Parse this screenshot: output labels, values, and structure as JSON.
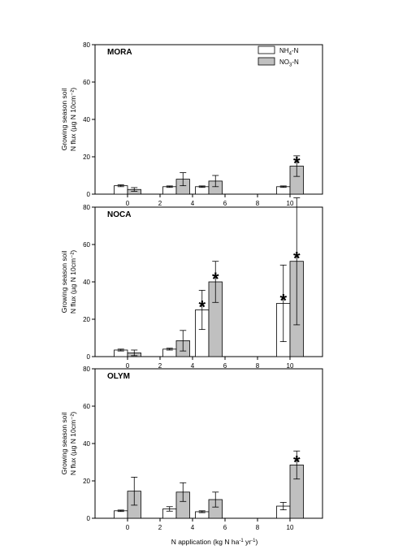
{
  "chart_data": {
    "type": "bar",
    "xlabel": "N application (kg N ha⁻¹ yr⁻¹)",
    "ylabel_line1": "Growing season soil",
    "ylabel_line2": "N flux (µg N 10cm⁻²)",
    "xlim": [
      -2,
      12
    ],
    "ylim": [
      0,
      80
    ],
    "x_ticks": [
      0,
      2,
      4,
      6,
      8,
      10
    ],
    "y_ticks": [
      0,
      20,
      40,
      60,
      80
    ],
    "legend": {
      "placement": "top-right",
      "entries": [
        {
          "label": "NH4-N",
          "main": "NH",
          "sub": "4",
          "rest": "-N",
          "color": "#ffffff"
        },
        {
          "label": "NO3-N",
          "main": "NO",
          "sub": "3",
          "rest": "-N",
          "color": "#c0c0c0"
        }
      ]
    },
    "significance_marker": "*",
    "panels": [
      {
        "name": "MORA",
        "x": [
          0,
          3,
          5,
          10
        ],
        "series": [
          {
            "name": "NH4-N",
            "color": "#ffffff",
            "values": [
              4.5,
              4.0,
              4.0,
              4.0
            ],
            "errors": [
              0.5,
              0.4,
              0.4,
              0.4
            ],
            "significant": [
              false,
              false,
              false,
              false
            ]
          },
          {
            "name": "NO3-N",
            "color": "#c0c0c0",
            "values": [
              2.5,
              8.0,
              7.0,
              15.0
            ],
            "errors": [
              1.0,
              3.5,
              3.0,
              5.5
            ],
            "significant": [
              false,
              false,
              false,
              true
            ]
          }
        ]
      },
      {
        "name": "NOCA",
        "x": [
          0,
          3,
          5,
          10
        ],
        "series": [
          {
            "name": "NH4-N",
            "color": "#ffffff",
            "values": [
              3.5,
              4.0,
              25.0,
              28.5
            ],
            "errors": [
              0.5,
              0.5,
              10.5,
              20.5
            ],
            "significant": [
              false,
              false,
              true,
              true
            ]
          },
          {
            "name": "NO3-N",
            "color": "#c0c0c0",
            "values": [
              2.0,
              8.5,
              40.0,
              51.0
            ],
            "errors": [
              1.5,
              5.5,
              11.0,
              34.0
            ],
            "significant": [
              false,
              false,
              true,
              true
            ]
          }
        ]
      },
      {
        "name": "OLYM",
        "x": [
          0,
          3,
          5,
          10
        ],
        "series": [
          {
            "name": "NH4-N",
            "color": "#ffffff",
            "values": [
              4.0,
              5.0,
              3.5,
              6.5
            ],
            "errors": [
              0.4,
              1.2,
              0.5,
              2.0
            ],
            "significant": [
              false,
              false,
              false,
              false
            ]
          },
          {
            "name": "NO3-N",
            "color": "#c0c0c0",
            "values": [
              14.5,
              14.0,
              10.0,
              28.5
            ],
            "errors": [
              7.5,
              5.0,
              4.0,
              7.5
            ],
            "significant": [
              false,
              false,
              false,
              true
            ]
          }
        ]
      }
    ]
  }
}
